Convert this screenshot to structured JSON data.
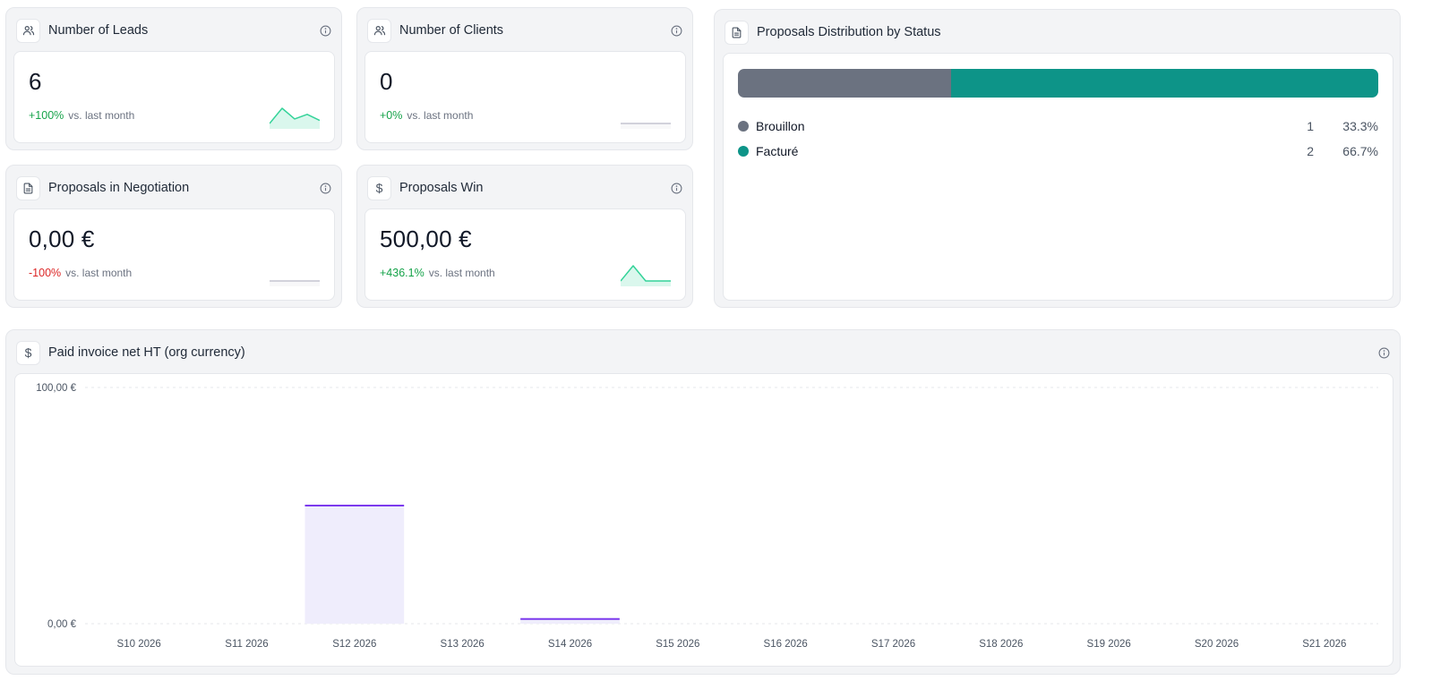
{
  "kpis": {
    "leads": {
      "title": "Number of Leads",
      "value": "6",
      "delta": "+100%",
      "delta_sub": "vs. last month",
      "trend": "up",
      "spark": [
        0,
        1,
        0.3,
        0.6,
        0.2
      ]
    },
    "clients": {
      "title": "Number of Clients",
      "value": "0",
      "delta": "+0%",
      "delta_sub": "vs. last month",
      "trend": "flat",
      "spark": [
        0,
        0,
        0,
        0,
        0
      ]
    },
    "negotiation": {
      "title": "Proposals in Negotiation",
      "value": "0,00 €",
      "delta": "-100%",
      "delta_sub": "vs. last month",
      "trend": "flat",
      "spark": [
        0,
        0,
        0,
        0,
        0
      ]
    },
    "win": {
      "title": "Proposals Win",
      "value": "500,00 €",
      "delta": "+436.1%",
      "delta_sub": "vs. last month",
      "trend": "up",
      "spark": [
        0,
        1,
        0,
        0,
        0
      ]
    }
  },
  "distribution": {
    "title": "Proposals Distribution by Status",
    "items": [
      {
        "name": "Brouillon",
        "count": "1",
        "pct": "33.3%",
        "fraction": 0.333,
        "color": "#6b7280"
      },
      {
        "name": "Facturé",
        "count": "2",
        "pct": "66.7%",
        "fraction": 0.667,
        "color": "#0d9488"
      }
    ]
  },
  "invoice": {
    "title": "Paid invoice net HT (org currency)"
  },
  "colors": {
    "positive": "#16a34a",
    "negative": "#dc2626",
    "bar_fill": "#efedfc",
    "bar_stroke": "#7c3aed",
    "spark_up": "#34d399",
    "spark_flat": "#c4c4d0"
  },
  "chart_data": {
    "type": "bar",
    "categories": [
      "S10 2026",
      "S11 2026",
      "S12 2026",
      "S13 2026",
      "S14 2026",
      "S15 2026",
      "S16 2026",
      "S17 2026",
      "S18 2026",
      "S19 2026",
      "S20 2026",
      "S21 2026"
    ],
    "values": [
      0,
      0,
      50,
      0,
      2,
      0,
      0,
      0,
      0,
      0,
      0,
      0
    ],
    "ylim": [
      0,
      100
    ],
    "yticks": [
      "0,00 €",
      "100,00 €"
    ],
    "grid": true,
    "legend": "none",
    "xlabel": "",
    "ylabel": ""
  }
}
